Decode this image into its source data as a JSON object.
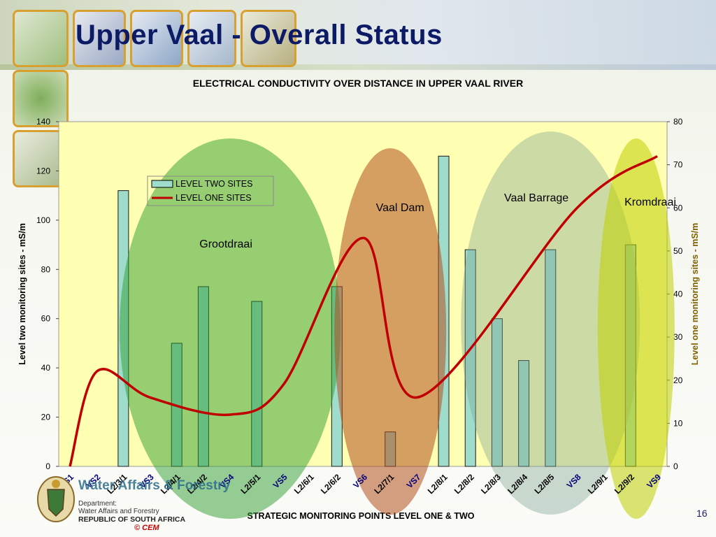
{
  "slide": {
    "title": "Upper Vaal - Overall Status",
    "page_number": "16",
    "copyright": "© CEM",
    "department": {
      "name": "Water Affairs & Forestry",
      "line1": "Department:",
      "line2": "Water Affairs and Forestry",
      "line3": "REPUBLIC OF SOUTH AFRICA"
    }
  },
  "chart_data": {
    "type": "bar",
    "title": "ELECTRICAL CONDUCTIVITY OVER DISTANCE IN UPPER VAAL RIVER",
    "xlabel": "STRATEGIC MONITORING POINTS LEVEL ONE & TWO",
    "ylabel": "Level two monitoring sites - mS/m",
    "y2label": "Level one monitoring sites - mS/m",
    "ylim": [
      0,
      140
    ],
    "y2lim": [
      0,
      80
    ],
    "yticks": [
      0,
      20,
      40,
      60,
      80,
      100,
      120,
      140
    ],
    "y2ticks": [
      0,
      10,
      20,
      30,
      40,
      50,
      60,
      70,
      80
    ],
    "categories": [
      "VS1",
      "VS2",
      "L2/3/1",
      "VS3",
      "L2/4/1",
      "L2/4/2",
      "VS4",
      "L2/5/1",
      "VS5",
      "L2/6/1",
      "L2/6/2",
      "VS6",
      "L2/7/1",
      "VS7",
      "L2/8/1",
      "L2/8/2",
      "L2/8/3",
      "L2/8/4",
      "L2/8/5",
      "VS8",
      "L2/9/1",
      "L2/9/2",
      "VS9"
    ],
    "series": [
      {
        "name": "LEVEL TWO SITES",
        "kind": "bar",
        "axis": "left",
        "values": [
          null,
          null,
          112,
          null,
          50,
          73,
          null,
          67,
          null,
          null,
          73,
          null,
          14,
          null,
          126,
          88,
          60,
          43,
          88,
          null,
          null,
          90,
          null
        ]
      },
      {
        "name": "LEVEL ONE SITES",
        "kind": "line",
        "axis": "right",
        "values": [
          0,
          22,
          null,
          16,
          null,
          null,
          12,
          null,
          19,
          null,
          null,
          53,
          null,
          16,
          null,
          null,
          null,
          null,
          null,
          60,
          null,
          null,
          72
        ]
      }
    ],
    "annotations": [
      "Grootdraai",
      "Vaal Dam",
      "Vaal Barrage",
      "Kromdraai"
    ],
    "legend_position": "top-left",
    "grid": false,
    "colors": {
      "bar": "#9fdccc",
      "bar_edge": "#1a1a1a",
      "line": "#c00000",
      "plot_bg": "#ffffb3"
    }
  }
}
